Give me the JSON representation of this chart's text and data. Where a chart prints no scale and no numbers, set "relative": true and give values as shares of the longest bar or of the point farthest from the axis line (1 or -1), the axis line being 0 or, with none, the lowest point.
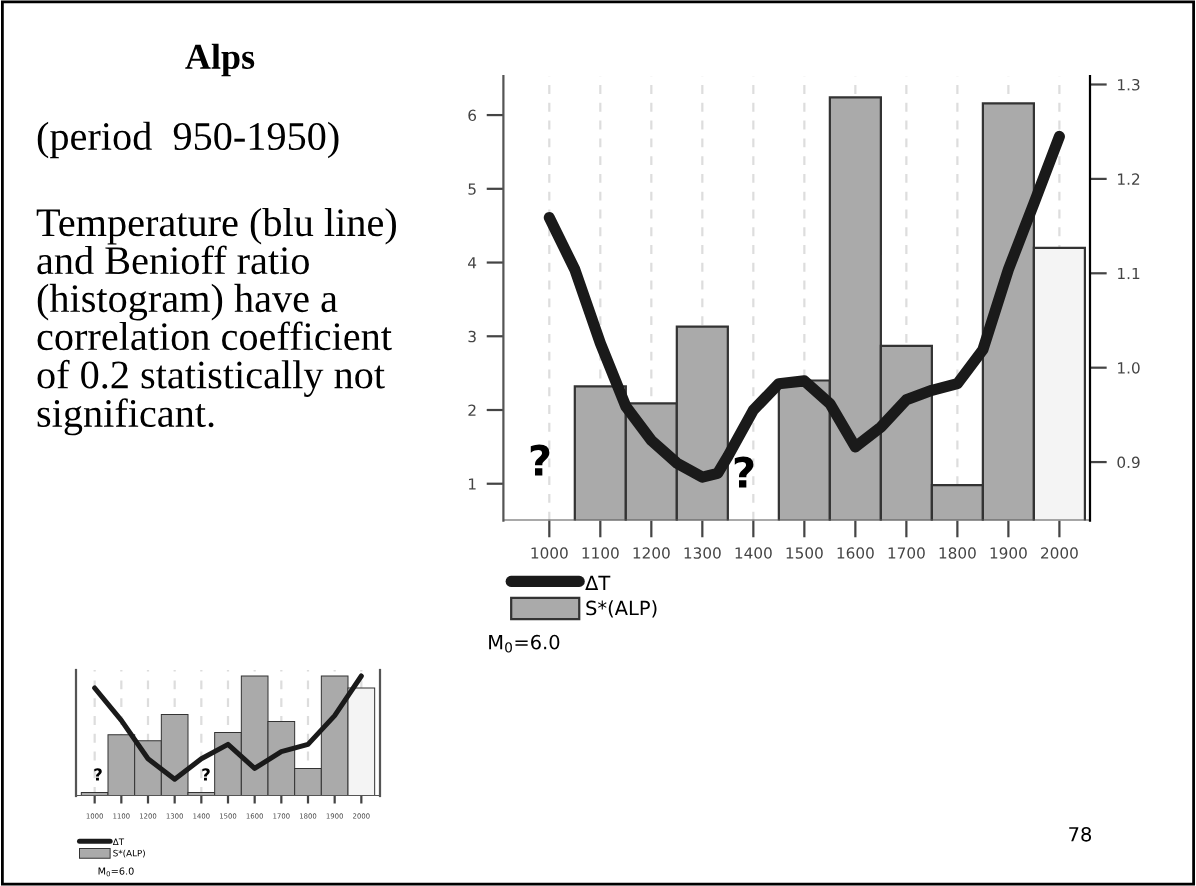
{
  "chart_data": [
    {
      "type": "bar",
      "x": [
        1100,
        1200,
        1300,
        1400,
        1500,
        1600,
        1700,
        1800,
        1900,
        2000
      ],
      "series": [
        {
          "name": "S*(ALP)",
          "color": "#aaaaaa",
          "colors": [
            "#aaaaaa",
            "#aaaaaa",
            "#aaaaaa",
            "#aaaaaa",
            "#aaaaaa",
            "#aaaaaa",
            "#aaaaaa",
            "#aaaaaa",
            "#aaaaaa",
            "#f4f4f4"
          ],
          "values": [
            2.32,
            2.09,
            3.13,
            null,
            2.4,
            6.24,
            2.87,
            0.98,
            6.16,
            4.2
          ]
        },
        {
          "name": "ΔT",
          "type": "line",
          "axis": "y2",
          "color": "#1a1a1a",
          "x": [
            1000,
            1050,
            1100,
            1150,
            1200,
            1250,
            1300,
            1330,
            1350,
            1400,
            1450,
            1500,
            1550,
            1600,
            1650,
            1700,
            1750,
            1800,
            1850,
            1900,
            1950,
            2000
          ],
          "values": [
            1.159,
            1.104,
            1.026,
            0.959,
            0.923,
            0.899,
            0.884,
            0.888,
            0.906,
            0.955,
            0.983,
            0.986,
            0.962,
            0.916,
            0.937,
            0.966,
            0.976,
            0.983,
            1.019,
            1.104,
            1.174,
            1.245
          ]
        }
      ],
      "xlim": [
        910,
        2060
      ],
      "xticks": [
        1000,
        1100,
        1200,
        1300,
        1400,
        1500,
        1600,
        1700,
        1800,
        1900,
        2000
      ],
      "ylim": [
        0.5,
        6.53
      ],
      "yticks": [
        1,
        2,
        3,
        4,
        5,
        6
      ],
      "y2lim": [
        0.838,
        1.309
      ],
      "y2ticks": [
        0.9,
        {
          "value": 1.0,
          "label": "1.0"
        },
        1.1,
        1.2,
        1.3
      ],
      "grid": "x",
      "legend": "bottom",
      "line_style": "solid",
      "marker": "none",
      "annotations": [
        "?",
        "?",
        "M$_{0}$=6.0",
        "78"
      ]
    },
    {
      "type": "bar",
      "relative": true,
      "tick_labels": "x",
      "title": "Alps",
      "subtitle": "(period  950-1950)",
      "categories": [
        "1000",
        "1100",
        "1200",
        "1300",
        "1400",
        "1500",
        "1600",
        "1700",
        "1800",
        "1900",
        "2000"
      ],
      "series": [
        {
          "name": "S*(ALP)",
          "color": "#aaaaaa",
          "colors": [
            "#aaaaaa",
            "#aaaaaa",
            "#aaaaaa",
            "#aaaaaa",
            "#aaaaaa",
            "#aaaaaa",
            "#aaaaaa",
            "#aaaaaa",
            "#aaaaaa",
            "#aaaaaa",
            "#f4f4f4"
          ],
          "values": [
            0.03,
            0.51,
            0.46,
            0.68,
            0.03,
            0.53,
            1,
            0.62,
            0.23,
            1,
            0.9
          ]
        },
        {
          "name": "ΔT",
          "type": "line",
          "color": "#1a1a1a",
          "values": [
            0.9,
            0.63,
            0.31,
            0.14,
            0.31,
            0.43,
            0.23,
            0.37,
            0.43,
            0.67,
            1
          ]
        }
      ],
      "grid": "x",
      "legend": "bottom",
      "line_style": "solid",
      "marker": "none",
      "annotations": [
        "?",
        "?",
        "M$_{0}$=6.0",
        "Temperature (blu line)\nand Benioff ratio\n(histogram) have a\ncorrelation coefficient\nof 0.2 statistically not\nsignificant."
      ]
    }
  ]
}
